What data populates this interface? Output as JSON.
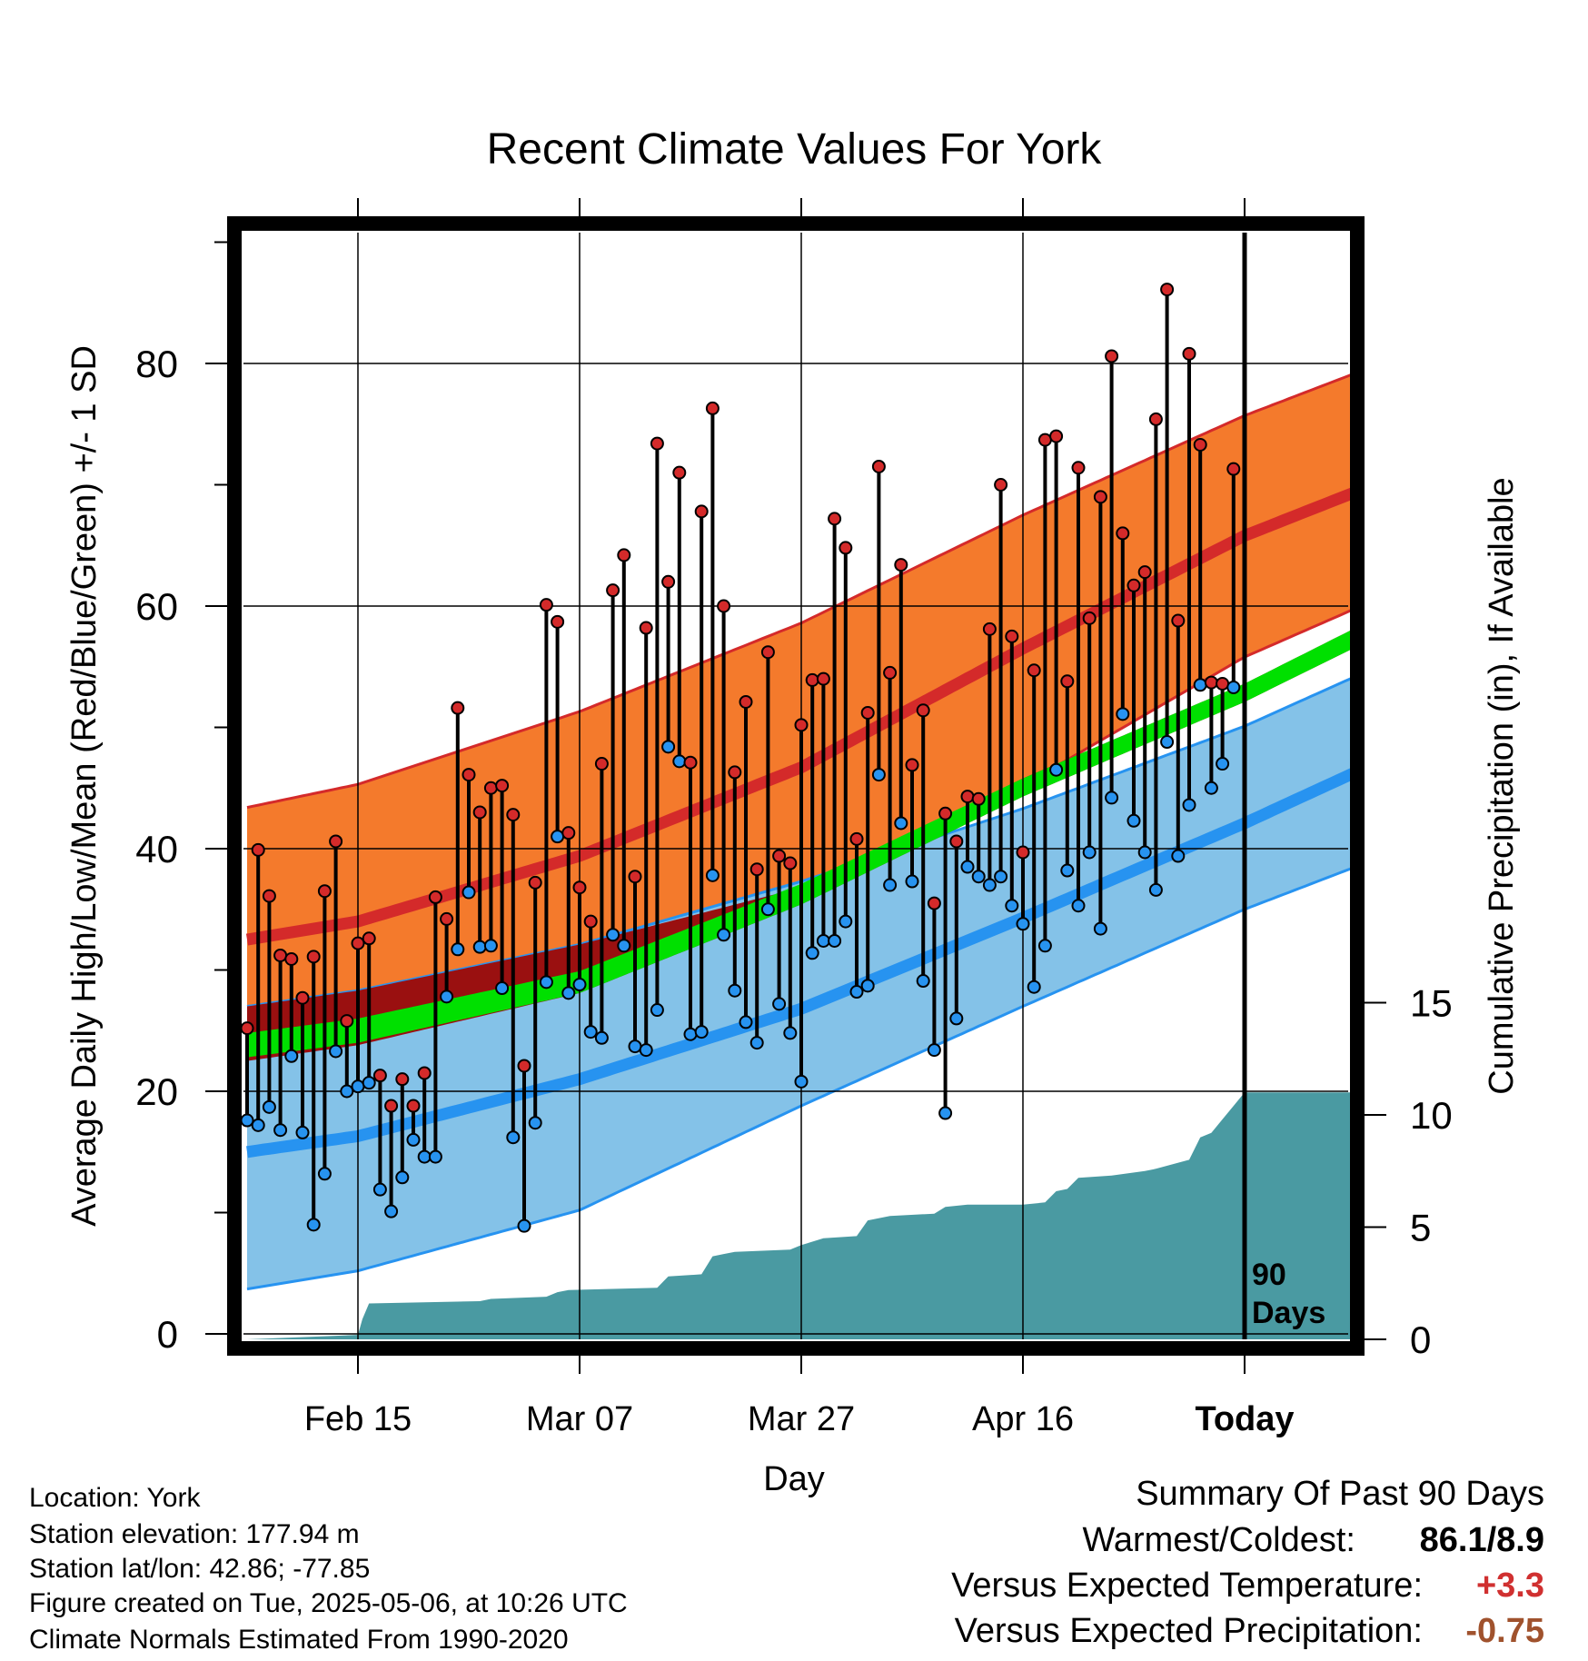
{
  "colors": {
    "high_band": "#f47a2c",
    "high_mean": "#d42a2a",
    "low_band": "#84c2e8",
    "low_mean": "#2793f0",
    "mean_line": "#00e000",
    "mean_dark": "#9a1010",
    "precip": "#4a9aa2",
    "high_point": "#d42a2a",
    "low_point": "#2793f0",
    "warm_value": "#d03030",
    "precip_value": "#a0522d"
  },
  "chart_data": {
    "type": "line",
    "title": "Recent Climate Values For York",
    "xlabel": "Day",
    "ylabel": "Average Daily High/Low/Mean (Red/Blue/Green) +/- 1 SD",
    "y2label": "Cumulative Precipitation (in), If Available",
    "xlim": [
      -10,
      90
    ],
    "ylim": [
      -1,
      91
    ],
    "y2lim": [
      0,
      30
    ],
    "x_ticks": [
      {
        "x": 0,
        "label": "Feb 15"
      },
      {
        "x": 20,
        "label": "Mar 07"
      },
      {
        "x": 40,
        "label": "Mar 27"
      },
      {
        "x": 60,
        "label": "Apr 16"
      },
      {
        "x": 80,
        "label": "Today"
      }
    ],
    "y_ticks": [
      0,
      20,
      40,
      60,
      80
    ],
    "y2_ticks": [
      0,
      5,
      10,
      15
    ],
    "today_x": 80,
    "today_label_1": "90",
    "today_label_2": "Days",
    "normals": {
      "x": [
        -10,
        0,
        20,
        40,
        60,
        80,
        90
      ],
      "high_upper": [
        43.4,
        45.3,
        51.3,
        58.6,
        67.5,
        75.7,
        79.2
      ],
      "high_mean": [
        32.5,
        34.0,
        39.4,
        46.7,
        56.5,
        65.8,
        69.4
      ],
      "high_lower": [
        22.5,
        23.8,
        28.4,
        36.2,
        45.2,
        55.8,
        59.8
      ],
      "low_upper": [
        27.0,
        28.3,
        32.1,
        37.3,
        43.3,
        50.1,
        54.2
      ],
      "low_mean": [
        15.0,
        16.3,
        21.0,
        26.8,
        34.3,
        42.1,
        46.3
      ],
      "low_lower": [
        3.7,
        5.2,
        10.2,
        18.8,
        27.0,
        35.0,
        38.5
      ],
      "mean_upper": [
        24.8,
        26.0,
        29.9,
        37.1,
        45.8,
        53.6,
        58.2
      ],
      "mean_lower": [
        22.8,
        24.0,
        28.1,
        35.4,
        44.3,
        52.1,
        56.6
      ],
      "dark_upper": [
        27.0,
        28.3,
        32.1,
        36.8,
        45.8,
        53.6,
        58.2
      ],
      "dark_lower": [
        22.5,
        23.8,
        28.1,
        35.4,
        44.3,
        52.1,
        56.6
      ]
    },
    "daily": {
      "x_start": -10,
      "highs": [
        25.2,
        39.9,
        36.1,
        31.2,
        30.9,
        27.7,
        31.1,
        36.5,
        40.6,
        25.8,
        32.2,
        32.6,
        21.3,
        18.8,
        21.0,
        18.8,
        21.5,
        36.0,
        34.2,
        51.6,
        46.1,
        43.0,
        45.0,
        45.2,
        42.8,
        22.1,
        37.2,
        60.1,
        58.7,
        41.3,
        36.8,
        34.0,
        47.0,
        61.3,
        64.2,
        37.7,
        58.2,
        73.4,
        62.0,
        71.0,
        47.1,
        67.8,
        76.3,
        60.0,
        46.3,
        52.1,
        38.3,
        56.2,
        39.4,
        38.8,
        50.2,
        53.9,
        54.0,
        67.2,
        64.8,
        40.8,
        51.2,
        71.5,
        54.5,
        63.4,
        46.9,
        51.4,
        35.5,
        42.9,
        40.6,
        44.3,
        44.1,
        58.1,
        70.0,
        57.5,
        39.7,
        54.7,
        73.7,
        74.0,
        53.8,
        71.4,
        59.0,
        69.0,
        80.6,
        66.0,
        61.7,
        62.8,
        75.4,
        86.1,
        58.8,
        80.8,
        73.3,
        53.7,
        53.6
      ],
      "lows": [
        17.6,
        17.2,
        18.7,
        16.8,
        22.9,
        16.6,
        9.0,
        13.2,
        23.3,
        20.0,
        20.4,
        20.7,
        11.9,
        10.1,
        12.9,
        16.0,
        14.6,
        14.6,
        27.8,
        31.7,
        36.4,
        31.9,
        32.0,
        28.5,
        16.2,
        8.9,
        17.4,
        29.0,
        41.0,
        28.1,
        28.8,
        24.9,
        24.4,
        32.9,
        32.0,
        23.7,
        23.4,
        26.7,
        48.4,
        47.2,
        24.7,
        24.9,
        37.8,
        32.9,
        28.3,
        25.7,
        24.0,
        35.0,
        27.2,
        24.8,
        20.8,
        31.4,
        32.4,
        32.4,
        34.0,
        28.2,
        28.7,
        46.1,
        37.0,
        42.1,
        37.3,
        29.1,
        23.4,
        18.2,
        26.0,
        38.5,
        37.7,
        37.0,
        37.7,
        35.3,
        33.8,
        28.6,
        32.0,
        46.5,
        38.2,
        35.3,
        39.7,
        33.4,
        44.2,
        51.1,
        42.3,
        39.7,
        36.6,
        48.8,
        39.4,
        43.6,
        53.5,
        45.0,
        47.0
      ]
    },
    "last_point": {
      "high": 71.3,
      "low": 53.3
    },
    "precip": {
      "x": [
        -10,
        0,
        0.4,
        1,
        11,
        12,
        17,
        18,
        19,
        27,
        28,
        31,
        32,
        33,
        34,
        39,
        40,
        42,
        45,
        46,
        48,
        52,
        53,
        55,
        60,
        62,
        63,
        64,
        65,
        68,
        71,
        72,
        75,
        76,
        77,
        78,
        79,
        80,
        90
      ],
      "y": [
        0,
        0.2,
        0.9,
        1.6,
        1.7,
        1.8,
        1.9,
        2.1,
        2.2,
        2.3,
        2.8,
        2.9,
        3.7,
        3.8,
        3.9,
        4.0,
        4.2,
        4.5,
        4.6,
        5.3,
        5.5,
        5.6,
        5.9,
        6.0,
        6.0,
        6.1,
        6.6,
        6.7,
        7.2,
        7.3,
        7.5,
        7.6,
        8.0,
        9.0,
        9.2,
        9.8,
        10.4,
        11.0,
        11.0
      ]
    }
  },
  "info": {
    "location": "Location: York",
    "elevation": "Station elevation: 177.94 m",
    "latlon": "Station lat/lon: 42.86; -77.85",
    "created": "Figure created on Tue, 2025-05-06, at 10:26 UTC",
    "normals": "Climate Normals Estimated From 1990-2020"
  },
  "summary": {
    "heading": "Summary Of Past 90 Days",
    "warm_label": "Warmest/Coldest:",
    "warm_value": "86.1/8.9",
    "temp_label": "Versus Expected Temperature:",
    "temp_value": "+3.3",
    "precip_label": "Versus Expected Precipitation:",
    "precip_value": "-0.75"
  }
}
